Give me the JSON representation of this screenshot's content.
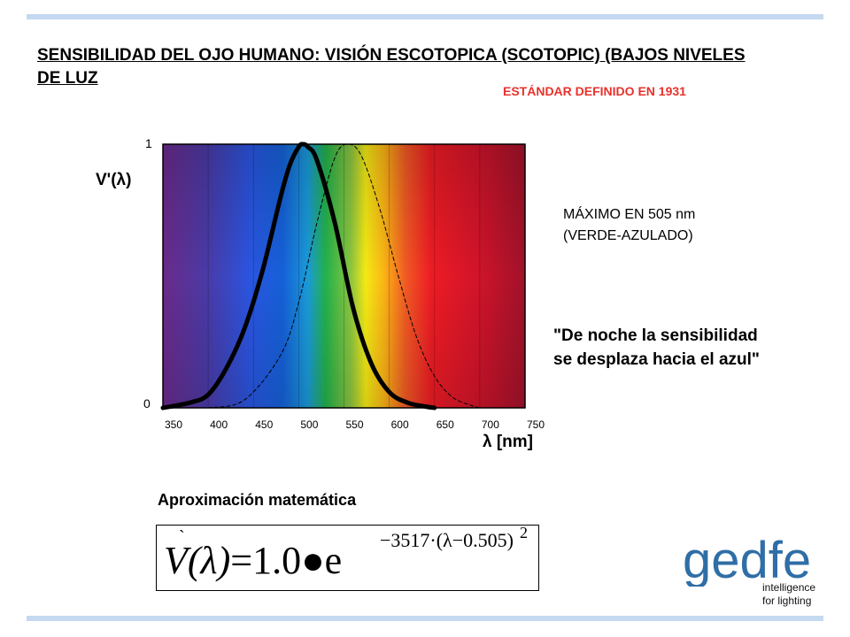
{
  "title": "SENSIBILIDAD DEL OJO HUMANO: VISIÓN ESCOTOPICA (SCOTOPIC) (BAJOS NIVELES DE LUZ",
  "standard_note": "ESTÁNDAR DEFINIDO EN 1931",
  "peak_note": {
    "line1": "MÁXIMO EN 505 nm",
    "line2": "(VERDE-AZULADO)"
  },
  "quote": {
    "line1": "\"De noche la sensibilidad",
    "line2": "se desplaza hacia el azul\""
  },
  "approx_title": "Aproximación matemática",
  "formula": {
    "lhs": "V(λ)",
    "accent": "`",
    "eq": "=1.0●e",
    "exponent": "−3517·(λ−0.505)",
    "power": "2"
  },
  "logo": {
    "mark": "gedfe",
    "tagline1": "intelligence",
    "tagline2": "for lighting",
    "color": "#2f6ea6"
  },
  "chart_data": {
    "type": "line",
    "ylabel": "V'(λ)",
    "xlabel": "λ [nm]",
    "y_ticks": [
      "0",
      "1"
    ],
    "ylim": [
      0,
      1
    ],
    "xlim": [
      350,
      750
    ],
    "x_ticks": [
      350,
      400,
      450,
      500,
      550,
      600,
      650,
      700,
      750
    ],
    "background": "visible spectrum gradient (violet to red)",
    "series": [
      {
        "style": "bold solid",
        "color": "#000000",
        "x": [
          350,
          380,
          400,
          420,
          440,
          460,
          480,
          490,
          500,
          505,
          510,
          520,
          540,
          560,
          580,
          600,
          620,
          640,
          650
        ],
        "y": [
          0.0,
          0.02,
          0.05,
          0.15,
          0.3,
          0.52,
          0.8,
          0.92,
          0.99,
          1.0,
          0.99,
          0.94,
          0.7,
          0.38,
          0.17,
          0.06,
          0.02,
          0.005,
          0.0
        ]
      },
      {
        "style": "thin dashed",
        "color": "#000000",
        "x": [
          400,
          440,
          480,
          500,
          520,
          540,
          555,
          570,
          590,
          610,
          630,
          650,
          670,
          690,
          700
        ],
        "y": [
          0.0,
          0.03,
          0.2,
          0.4,
          0.7,
          0.95,
          1.0,
          0.95,
          0.75,
          0.5,
          0.27,
          0.12,
          0.04,
          0.01,
          0.0
        ]
      }
    ]
  }
}
